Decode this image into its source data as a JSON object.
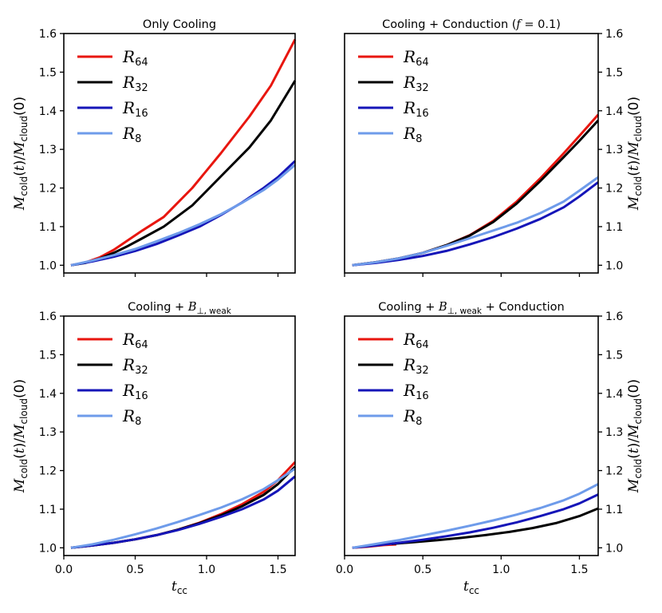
{
  "chart_data": [
    {
      "type": "line",
      "title": "Only Cooling",
      "xlabel": "",
      "ylabel_main": "M",
      "ylabel_sub1": "cold",
      "ylabel_mid": "(t)/M",
      "ylabel_sub2": "cloud",
      "ylabel_end": "(0)",
      "xlim": [
        0.0,
        1.62
      ],
      "ylim": [
        0.98,
        1.6
      ],
      "xticks": [
        0.0,
        0.5,
        1.0,
        1.5
      ],
      "xtick_labels": [
        "",
        "",
        "",
        ""
      ],
      "yticks": [
        1.0,
        1.1,
        1.2,
        1.3,
        1.4,
        1.5,
        1.6
      ],
      "ytick_labels": [
        "1.0",
        "1.1",
        "1.2",
        "1.3",
        "1.4",
        "1.5",
        "1.6"
      ],
      "yaxis_side": "left",
      "legend_position": "top-left",
      "series": [
        {
          "name": "R",
          "sub": "64",
          "color": "#e8160f",
          "x": [
            0.05,
            0.15,
            0.25,
            0.35,
            0.45,
            0.55,
            0.7,
            0.9,
            1.1,
            1.3,
            1.45,
            1.62
          ],
          "y": [
            1.0,
            1.007,
            1.02,
            1.04,
            1.065,
            1.09,
            1.125,
            1.2,
            1.29,
            1.385,
            1.465,
            1.585
          ]
        },
        {
          "name": "R",
          "sub": "32",
          "color": "#000000",
          "x": [
            0.05,
            0.15,
            0.25,
            0.35,
            0.45,
            0.55,
            0.7,
            0.9,
            1.1,
            1.3,
            1.45,
            1.62
          ],
          "y": [
            1.0,
            1.006,
            1.017,
            1.032,
            1.05,
            1.07,
            1.1,
            1.155,
            1.23,
            1.305,
            1.375,
            1.478
          ]
        },
        {
          "name": "R",
          "sub": "16",
          "color": "#1515b8",
          "x": [
            0.05,
            0.2,
            0.35,
            0.5,
            0.65,
            0.8,
            0.95,
            1.1,
            1.25,
            1.4,
            1.5,
            1.62
          ],
          "y": [
            1.0,
            1.01,
            1.022,
            1.037,
            1.055,
            1.077,
            1.1,
            1.13,
            1.163,
            1.2,
            1.228,
            1.27
          ]
        },
        {
          "name": "R",
          "sub": "8",
          "color": "#6e9bea",
          "x": [
            0.05,
            0.2,
            0.35,
            0.5,
            0.65,
            0.8,
            0.95,
            1.1,
            1.25,
            1.4,
            1.5,
            1.62
          ],
          "y": [
            1.0,
            1.012,
            1.026,
            1.042,
            1.062,
            1.083,
            1.106,
            1.132,
            1.162,
            1.195,
            1.222,
            1.26
          ]
        }
      ]
    },
    {
      "type": "line",
      "title": "Cooling + Conduction (f = 0.1)",
      "title_prefix": "Cooling + Conduction (",
      "title_var": "f",
      "title_suffix": " = 0.1)",
      "xlabel": "",
      "ylabel_main": "M",
      "ylabel_sub1": "cold",
      "ylabel_mid": "(t)/M",
      "ylabel_sub2": "cloud",
      "ylabel_end": "(0)",
      "xlim": [
        0.0,
        1.62
      ],
      "ylim": [
        0.98,
        1.6
      ],
      "xticks": [
        0.0,
        0.5,
        1.0,
        1.5
      ],
      "xtick_labels": [
        "",
        "",
        "",
        ""
      ],
      "yticks": [
        1.0,
        1.1,
        1.2,
        1.3,
        1.4,
        1.5,
        1.6
      ],
      "ytick_labels": [
        "1.0",
        "1.1",
        "1.2",
        "1.3",
        "1.4",
        "1.5",
        "1.6"
      ],
      "yaxis_side": "right",
      "legend_position": "top-left",
      "series": [
        {
          "name": "R",
          "sub": "64",
          "color": "#e8160f",
          "x": [
            0.05,
            0.2,
            0.35,
            0.5,
            0.65,
            0.8,
            0.95,
            1.1,
            1.25,
            1.4,
            1.5,
            1.62
          ],
          "y": [
            1.0,
            1.008,
            1.018,
            1.032,
            1.052,
            1.078,
            1.115,
            1.165,
            1.225,
            1.29,
            1.335,
            1.39
          ]
        },
        {
          "name": "R",
          "sub": "32",
          "color": "#000000",
          "x": [
            0.05,
            0.2,
            0.35,
            0.5,
            0.65,
            0.8,
            0.95,
            1.1,
            1.25,
            1.4,
            1.5,
            1.62
          ],
          "y": [
            1.0,
            1.008,
            1.018,
            1.032,
            1.052,
            1.077,
            1.112,
            1.16,
            1.218,
            1.28,
            1.322,
            1.375
          ]
        },
        {
          "name": "R",
          "sub": "16",
          "color": "#1515b8",
          "x": [
            0.05,
            0.2,
            0.35,
            0.5,
            0.65,
            0.8,
            0.95,
            1.1,
            1.25,
            1.4,
            1.5,
            1.62
          ],
          "y": [
            1.0,
            1.006,
            1.014,
            1.024,
            1.037,
            1.054,
            1.073,
            1.095,
            1.12,
            1.15,
            1.178,
            1.215
          ]
        },
        {
          "name": "R",
          "sub": "8",
          "color": "#6e9bea",
          "x": [
            0.05,
            0.2,
            0.35,
            0.5,
            0.65,
            0.8,
            0.95,
            1.1,
            1.25,
            1.4,
            1.5,
            1.62
          ],
          "y": [
            1.0,
            1.008,
            1.018,
            1.032,
            1.05,
            1.07,
            1.09,
            1.11,
            1.135,
            1.165,
            1.193,
            1.228
          ]
        }
      ]
    },
    {
      "type": "line",
      "title": "Cooling + B⊥, weak",
      "title_prefix": "Cooling + ",
      "title_var": "B",
      "title_sub": "⊥, weak",
      "title_suffix": "",
      "xlabel_main": "t",
      "xlabel_sub": "cc",
      "ylabel_main": "M",
      "ylabel_sub1": "cold",
      "ylabel_mid": "(t)/M",
      "ylabel_sub2": "cloud",
      "ylabel_end": "(0)",
      "xlim": [
        0.0,
        1.62
      ],
      "ylim": [
        0.98,
        1.6
      ],
      "xticks": [
        0.0,
        0.5,
        1.0,
        1.5
      ],
      "xtick_labels": [
        "0.0",
        "0.5",
        "1.0",
        "1.5"
      ],
      "yticks": [
        1.0,
        1.1,
        1.2,
        1.3,
        1.4,
        1.5,
        1.6
      ],
      "ytick_labels": [
        "1.0",
        "1.1",
        "1.2",
        "1.3",
        "1.4",
        "1.5",
        "1.6"
      ],
      "yaxis_side": "left",
      "legend_position": "top-left",
      "series": [
        {
          "name": "R",
          "sub": "64",
          "color": "#e8160f",
          "x": [
            0.05,
            0.2,
            0.35,
            0.5,
            0.65,
            0.8,
            0.95,
            1.1,
            1.25,
            1.4,
            1.5,
            1.62
          ],
          "y": [
            1.0,
            1.006,
            1.013,
            1.022,
            1.033,
            1.047,
            1.065,
            1.087,
            1.113,
            1.145,
            1.175,
            1.222
          ]
        },
        {
          "name": "R",
          "sub": "32",
          "color": "#000000",
          "x": [
            0.05,
            0.2,
            0.35,
            0.5,
            0.65,
            0.8,
            0.95,
            1.1,
            1.25,
            1.4,
            1.5,
            1.62
          ],
          "y": [
            1.0,
            1.006,
            1.013,
            1.022,
            1.033,
            1.047,
            1.064,
            1.084,
            1.108,
            1.137,
            1.165,
            1.21
          ]
        },
        {
          "name": "R",
          "sub": "16",
          "color": "#1515b8",
          "x": [
            0.05,
            0.2,
            0.35,
            0.5,
            0.65,
            0.8,
            0.95,
            1.1,
            1.25,
            1.4,
            1.5,
            1.62
          ],
          "y": [
            1.0,
            1.006,
            1.013,
            1.022,
            1.033,
            1.046,
            1.062,
            1.08,
            1.1,
            1.125,
            1.148,
            1.185
          ]
        },
        {
          "name": "R",
          "sub": "8",
          "color": "#6e9bea",
          "x": [
            0.05,
            0.2,
            0.35,
            0.5,
            0.65,
            0.8,
            0.95,
            1.1,
            1.25,
            1.4,
            1.5,
            1.62
          ],
          "y": [
            1.0,
            1.009,
            1.021,
            1.035,
            1.05,
            1.067,
            1.085,
            1.104,
            1.126,
            1.152,
            1.175,
            1.205
          ]
        }
      ]
    },
    {
      "type": "line",
      "title": "Cooling + B⊥, weak + Conduction",
      "title_prefix": "Cooling + ",
      "title_var": "B",
      "title_sub": "⊥, weak",
      "title_suffix": " + Conduction",
      "xlabel_main": "t",
      "xlabel_sub": "cc",
      "ylabel_main": "M",
      "ylabel_sub1": "cold",
      "ylabel_mid": "(t)/M",
      "ylabel_sub2": "cloud",
      "ylabel_end": "(0)",
      "xlim": [
        0.0,
        1.62
      ],
      "ylim": [
        0.98,
        1.6
      ],
      "xticks": [
        0.0,
        0.5,
        1.0,
        1.5
      ],
      "xtick_labels": [
        "0.0",
        "0.5",
        "1.0",
        "1.5"
      ],
      "yticks": [
        1.0,
        1.1,
        1.2,
        1.3,
        1.4,
        1.5,
        1.6
      ],
      "ytick_labels": [
        "1.0",
        "1.1",
        "1.2",
        "1.3",
        "1.4",
        "1.5",
        "1.6"
      ],
      "yaxis_side": "right",
      "legend_position": "top-left",
      "series": [
        {
          "name": "R",
          "sub": "64",
          "color": "#e8160f",
          "x": [
            0.05,
            0.15,
            0.25,
            0.33
          ],
          "y": [
            1.0,
            1.003,
            1.007,
            1.009
          ]
        },
        {
          "name": "R",
          "sub": "32",
          "color": "#000000",
          "x": [
            0.3,
            0.45,
            0.6,
            0.75,
            0.9,
            1.05,
            1.2,
            1.35,
            1.5,
            1.62
          ],
          "y": [
            1.01,
            1.015,
            1.02,
            1.026,
            1.033,
            1.041,
            1.051,
            1.064,
            1.082,
            1.102
          ]
        },
        {
          "name": "R",
          "sub": "16",
          "color": "#1515b8",
          "x": [
            0.05,
            0.2,
            0.35,
            0.5,
            0.65,
            0.8,
            0.95,
            1.1,
            1.25,
            1.4,
            1.5,
            1.62
          ],
          "y": [
            1.0,
            1.006,
            1.013,
            1.021,
            1.03,
            1.04,
            1.052,
            1.066,
            1.082,
            1.1,
            1.115,
            1.138
          ]
        },
        {
          "name": "R",
          "sub": "8",
          "color": "#6e9bea",
          "x": [
            0.05,
            0.2,
            0.35,
            0.5,
            0.65,
            0.8,
            0.95,
            1.1,
            1.25,
            1.4,
            1.5,
            1.62
          ],
          "y": [
            1.0,
            1.01,
            1.02,
            1.032,
            1.044,
            1.057,
            1.071,
            1.086,
            1.103,
            1.123,
            1.14,
            1.165
          ]
        }
      ]
    }
  ]
}
